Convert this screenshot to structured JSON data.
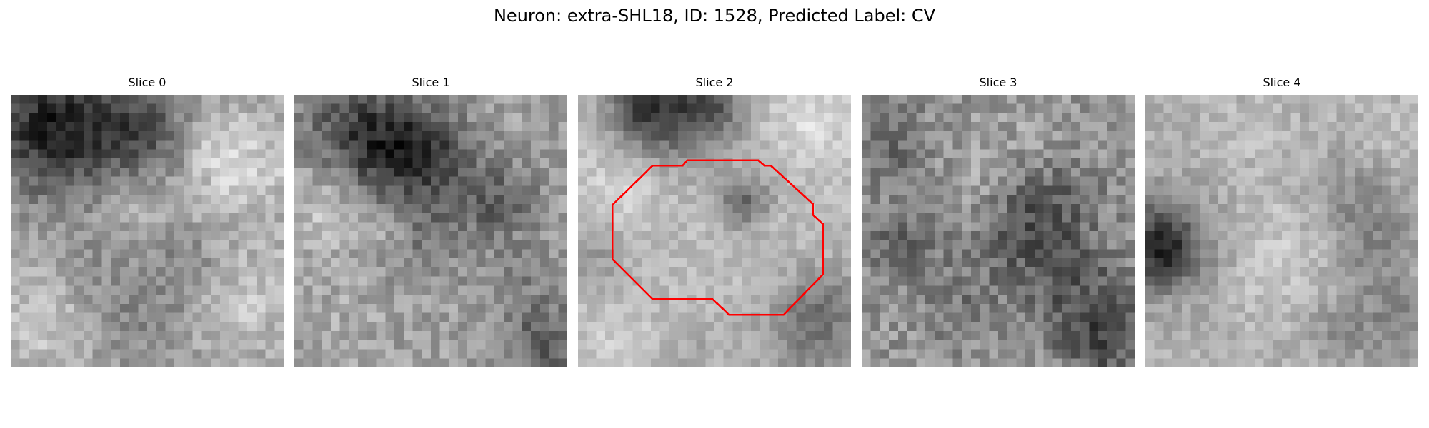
{
  "figure": {
    "title": "Neuron: extra-SHL18, ID: 1528, Predicted Label: CV",
    "outline_color": "#ff0000",
    "colormap": "gray",
    "panels": [
      {
        "title": "Slice 0",
        "has_outline": false
      },
      {
        "title": "Slice 1",
        "has_outline": false
      },
      {
        "title": "Slice 2",
        "has_outline": true
      },
      {
        "title": "Slice 3",
        "has_outline": false
      },
      {
        "title": "Slice 4",
        "has_outline": false
      }
    ]
  }
}
